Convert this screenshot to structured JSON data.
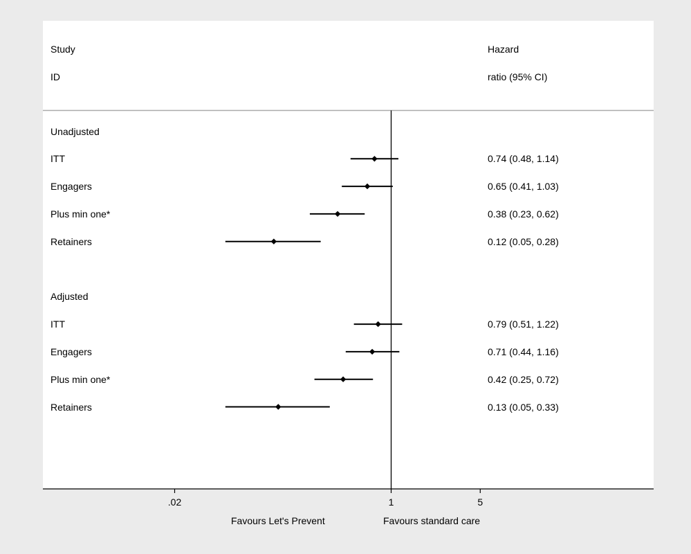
{
  "header": {
    "study_line1": "Study",
    "study_line2": "ID",
    "hr_line1": "Hazard",
    "hr_line2": "ratio (95% CI)"
  },
  "chart_data": {
    "type": "forest",
    "x_scale": "log",
    "reference_line": 1,
    "xlim": [
      0.02,
      5
    ],
    "x_ticks": [
      {
        "value": 0.02,
        "label": ".02"
      },
      {
        "value": 1,
        "label": "1"
      },
      {
        "value": 5,
        "label": "5"
      }
    ],
    "groups": [
      {
        "label": "Unadjusted",
        "rows": [
          {
            "label": "ITT",
            "hr": 0.74,
            "lo": 0.48,
            "hi": 1.14,
            "text": "0.74 (0.48, 1.14)"
          },
          {
            "label": "Engagers",
            "hr": 0.65,
            "lo": 0.41,
            "hi": 1.03,
            "text": "0.65 (0.41, 1.03)"
          },
          {
            "label": "Plus min one*",
            "hr": 0.38,
            "lo": 0.23,
            "hi": 0.62,
            "text": "0.38 (0.23, 0.62)"
          },
          {
            "label": "Retainers",
            "hr": 0.12,
            "lo": 0.05,
            "hi": 0.28,
            "text": "0.12 (0.05, 0.28)"
          }
        ]
      },
      {
        "label": "Adjusted",
        "rows": [
          {
            "label": "ITT",
            "hr": 0.79,
            "lo": 0.51,
            "hi": 1.22,
            "text": "0.79 (0.51, 1.22)"
          },
          {
            "label": "Engagers",
            "hr": 0.71,
            "lo": 0.44,
            "hi": 1.16,
            "text": "0.71 (0.44, 1.16)"
          },
          {
            "label": "Plus min one*",
            "hr": 0.42,
            "lo": 0.25,
            "hi": 0.72,
            "text": "0.42 (0.25, 0.72)"
          },
          {
            "label": "Retainers",
            "hr": 0.13,
            "lo": 0.05,
            "hi": 0.33,
            "text": "0.13 (0.05, 0.33)"
          }
        ]
      }
    ],
    "favours_left": "Favours Let's Prevent",
    "favours_right": "Favours standard care"
  }
}
